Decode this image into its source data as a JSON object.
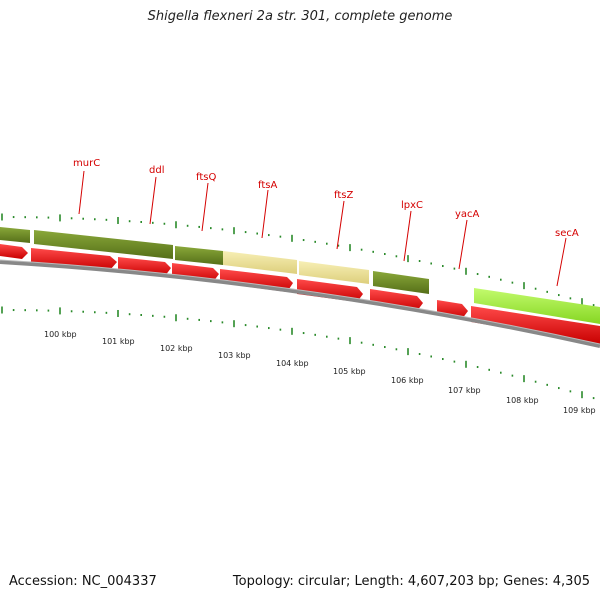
{
  "title": "Shigella flexneri 2a str. 301, complete genome",
  "accession": "Accession: NC_004337",
  "summary": "Topology: circular; Length: 4,607,203 bp; Genes: 4,305",
  "colors": {
    "olive": "#6b8b23",
    "khaki": "#efe39a",
    "lime": "#a5f03d",
    "red": "#ee1111",
    "backbone": "#888888",
    "tick": "#2a8a2a",
    "label": "#d40000"
  },
  "gene_labels": [
    "murC",
    "ddl",
    "ftsQ",
    "ftsA",
    "ftsZ",
    "lpxC",
    "yacA",
    "secA"
  ],
  "kbp_labels": [
    "100 kbp",
    "101 kbp",
    "102 kbp",
    "103 kbp",
    "104 kbp",
    "105 kbp",
    "106 kbp",
    "107 kbp",
    "108 kbp",
    "109 kbp"
  ]
}
